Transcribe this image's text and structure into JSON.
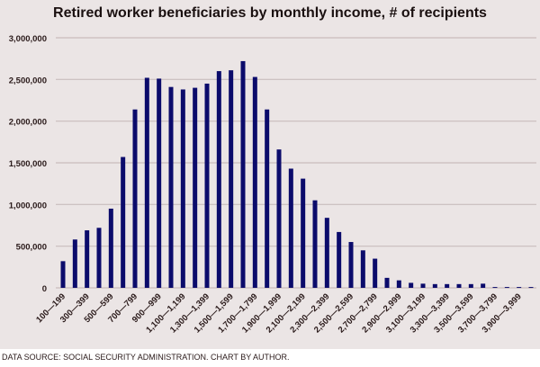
{
  "chart_data": {
    "type": "bar",
    "title": "Retired worker beneficiaries by monthly income, # of recipients",
    "x_tick_labels": [
      "100—199",
      "300—399",
      "500—599",
      "700—799",
      "900—999",
      "1,100—1,199",
      "1,300—1,399",
      "1,500—1,599",
      "1,700—1,799",
      "1,900—1,999",
      "2,100—2,199",
      "2,300—2,399",
      "2,500—2,599",
      "2,700—2,799",
      "2,900—2,999",
      "3,100—3,199",
      "3,300—3,399",
      "3,500—3,599",
      "3,700—3,799",
      "3,900—3,999"
    ],
    "values": [
      320000,
      580000,
      690000,
      720000,
      950000,
      1570000,
      2140000,
      2520000,
      2510000,
      2410000,
      2380000,
      2400000,
      2450000,
      2600000,
      2610000,
      2720000,
      2530000,
      2140000,
      1660000,
      1430000,
      1310000,
      1050000,
      840000,
      670000,
      550000,
      450000,
      350000,
      120000,
      90000,
      60000,
      50000,
      45000,
      45000,
      45000,
      45000,
      50000,
      10000,
      10000,
      10000,
      10000
    ],
    "y_tick_labels": [
      "0",
      "500,000",
      "1,000,000",
      "1,500,000",
      "2,000,000",
      "2,500,000",
      "3,000,000"
    ],
    "ylim": [
      0,
      3000000
    ],
    "grid": "horizontal",
    "bar_color": "#0b0b6b",
    "xlabel": "",
    "ylabel": ""
  },
  "footer": {
    "source": "DATA SOURCE: SOCIAL SECURITY ADMINISTRATION. CHART BY AUTHOR."
  }
}
